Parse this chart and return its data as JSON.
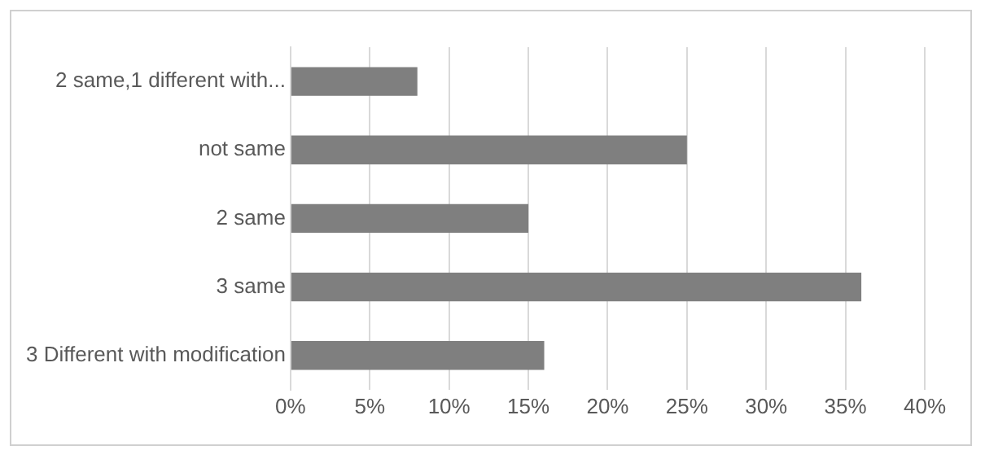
{
  "chart_data": {
    "type": "bar",
    "orientation": "horizontal",
    "categories": [
      "2 same,1 different with...",
      "not same",
      "2 same",
      "3 same",
      "3 Different with modification"
    ],
    "values": [
      8,
      25,
      15,
      36,
      16
    ],
    "color": "#7f7f7f",
    "xlim": [
      0,
      40
    ],
    "xticks": [
      {
        "value": 0,
        "label": "0%"
      },
      {
        "value": 5,
        "label": "5%"
      },
      {
        "value": 10,
        "label": "10%"
      },
      {
        "value": 15,
        "label": "15%"
      },
      {
        "value": 20,
        "label": "20%"
      },
      {
        "value": 25,
        "label": "25%"
      },
      {
        "value": 30,
        "label": "30%"
      },
      {
        "value": 35,
        "label": "35%"
      },
      {
        "value": 40,
        "label": "40%"
      }
    ],
    "grid": "x",
    "legend": false
  }
}
